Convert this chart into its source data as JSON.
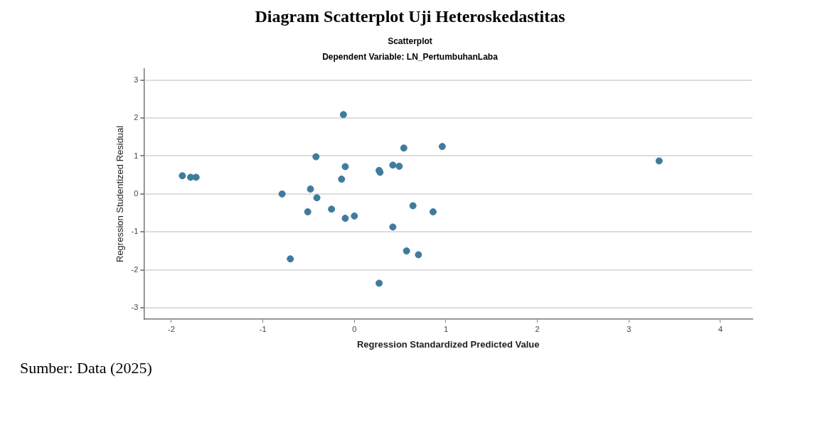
{
  "chart_data": {
    "type": "scatter",
    "title": "Diagram Scatterplot Uji Heteroskedastitas",
    "subtitle": "Scatterplot",
    "annotations": [
      "Dependent Variable: LN_PertumbuhanLaba",
      "Sumber: Data (2025)"
    ],
    "xlabel": "Regression Standardized Predicted Value",
    "ylabel": "Regression Studentized Residual",
    "x": [
      -1.88,
      -1.79,
      -1.73,
      -0.79,
      -0.7,
      -0.51,
      -0.48,
      -0.42,
      -0.41,
      -0.25,
      -0.14,
      -0.12,
      -0.1,
      -0.1,
      0.0,
      0.27,
      0.28,
      0.27,
      0.42,
      0.49,
      0.42,
      0.54,
      0.57,
      0.64,
      0.7,
      0.86,
      0.96,
      3.33
    ],
    "values": [
      0.48,
      0.44,
      0.44,
      0.0,
      -1.71,
      -0.47,
      0.13,
      0.98,
      -0.1,
      -0.4,
      0.39,
      2.09,
      0.72,
      -0.64,
      -0.58,
      0.62,
      0.57,
      -2.35,
      0.76,
      0.73,
      -0.87,
      1.21,
      -1.5,
      -0.31,
      -1.6,
      -0.47,
      1.25,
      0.87
    ],
    "color": "#3f7c9c",
    "marker": "circle",
    "xlim": [
      -2.3,
      4.35
    ],
    "xticks": [
      -2,
      -1,
      0,
      1,
      2,
      3,
      4
    ],
    "ylim": [
      -3.3,
      3.3
    ],
    "yticks": [
      -3,
      -2,
      -1,
      0,
      1,
      2,
      3
    ],
    "grid": "y",
    "legend": false
  }
}
